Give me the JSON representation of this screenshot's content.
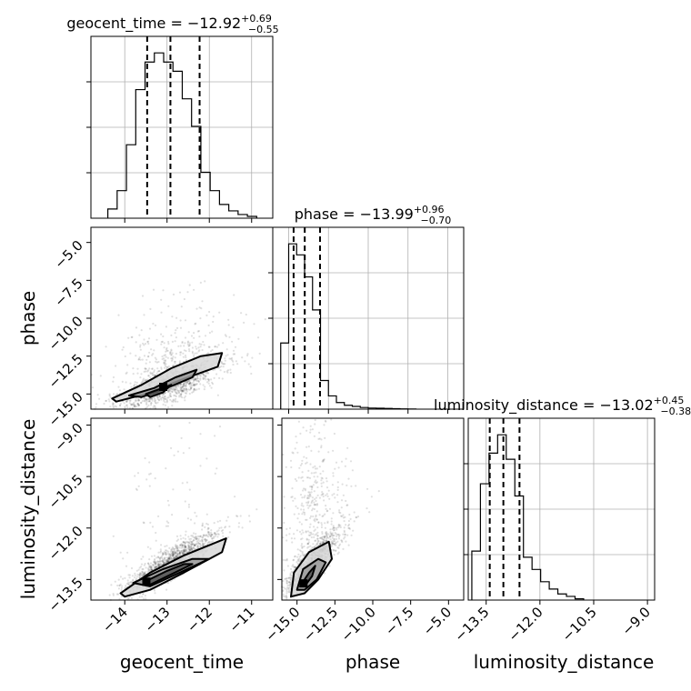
{
  "figure": {
    "type": "corner-plot",
    "background": "#ffffff",
    "hist_color": "#000000",
    "median_line_color": "#000000"
  },
  "chart_data": [
    {
      "type": "histogram",
      "parameter": "geocent_time",
      "title": "geocent_time = −12.92",
      "title_sup": "+0.69",
      "title_sub": "−0.55",
      "xlim": [
        -14.8,
        -10.5
      ],
      "quantiles": [
        -13.47,
        -12.92,
        -12.23
      ],
      "bin_edges": [
        -14.4,
        -14.18,
        -13.96,
        -13.74,
        -13.52,
        -13.3,
        -13.08,
        -12.86,
        -12.64,
        -12.42,
        -12.2,
        -11.98,
        -11.76,
        -11.54,
        -11.32,
        -11.1,
        -10.88
      ],
      "counts": [
        1,
        3,
        8,
        14,
        17,
        18,
        17,
        16,
        13,
        10,
        5,
        3,
        1.5,
        0.8,
        0.4,
        0.2
      ],
      "grid": true
    },
    {
      "type": "histogram",
      "parameter": "phase",
      "title": "phase = −13.99",
      "title_sup": "+0.96",
      "title_sub": "−0.70",
      "xlim": [
        -16.0,
        -4.0
      ],
      "quantiles": [
        -14.69,
        -13.99,
        -13.03
      ],
      "bin_edges": [
        -15.5,
        -15.0,
        -14.5,
        -14.0,
        -13.5,
        -13.0,
        -12.5,
        -12.0,
        -11.5,
        -11.0,
        -10.5,
        -10.0,
        -9.5,
        -9.0,
        -8.5,
        -8.0,
        -7.5,
        -7.0
      ],
      "counts": [
        6,
        15,
        14,
        12,
        9,
        2.6,
        1.2,
        0.6,
        0.35,
        0.25,
        0.15,
        0.1,
        0.08,
        0.06,
        0.04,
        0.02,
        0.01
      ],
      "grid": true
    },
    {
      "type": "histogram",
      "parameter": "luminosity_distance",
      "title": "luminosity_distance = −13.02",
      "title_sup": "+0.45",
      "title_sub": "−0.38",
      "xlim": [
        -14.0,
        -8.8
      ],
      "quantiles": [
        -13.4,
        -13.02,
        -12.57
      ],
      "bin_edges": [
        -13.9,
        -13.66,
        -13.42,
        -13.18,
        -12.94,
        -12.7,
        -12.46,
        -12.22,
        -11.98,
        -11.74,
        -11.5,
        -11.26,
        -11.02,
        -10.78
      ],
      "counts": [
        4,
        9.5,
        12,
        13.5,
        11.5,
        8.5,
        3.5,
        2.5,
        1.5,
        0.9,
        0.5,
        0.3,
        0.1
      ],
      "grid": true
    },
    {
      "type": "scatter",
      "x_param": "geocent_time",
      "y_param": "phase",
      "xlim": [
        -14.8,
        -10.5
      ],
      "ylim": [
        -16.0,
        -4.0
      ],
      "cloud": {
        "x_mean": -12.92,
        "x_sd": 0.55,
        "y_base": -14.4,
        "y_slope": 1.0,
        "y_sd": 0.55,
        "tail_fraction": 0.3
      },
      "contours": [
        {
          "level": "outer",
          "points": [
            [
              -14.3,
              -15.3
            ],
            [
              -13.6,
              -14.4
            ],
            [
              -12.9,
              -13.3
            ],
            [
              -12.2,
              -12.5
            ],
            [
              -11.7,
              -12.3
            ],
            [
              -11.8,
              -13.2
            ],
            [
              -12.7,
              -14.1
            ],
            [
              -13.5,
              -15.0
            ],
            [
              -14.2,
              -15.5
            ]
          ]
        },
        {
          "level": "middle",
          "points": [
            [
              -13.9,
              -15.1
            ],
            [
              -13.3,
              -14.6
            ],
            [
              -12.8,
              -13.9
            ],
            [
              -12.3,
              -13.4
            ],
            [
              -12.4,
              -13.9
            ],
            [
              -13.0,
              -14.6
            ],
            [
              -13.6,
              -15.2
            ]
          ]
        },
        {
          "level": "inner",
          "points": [
            [
              -13.5,
              -15.0
            ],
            [
              -13.1,
              -14.6
            ],
            [
              -12.9,
              -14.4
            ],
            [
              -13.1,
              -14.9
            ],
            [
              -13.4,
              -15.2
            ]
          ]
        }
      ],
      "peak": [
        -13.1,
        -14.5
      ],
      "grid": false
    },
    {
      "type": "scatter",
      "x_param": "geocent_time",
      "y_param": "luminosity_distance",
      "xlim": [
        -14.8,
        -10.5
      ],
      "ylim": [
        -14.1,
        -8.8
      ],
      "cloud": {
        "x_mean": -12.92,
        "x_sd": 0.55,
        "y_base": -13.02,
        "y_slope": 0.75,
        "y_sd": 0.22,
        "tail_fraction": 0.05
      },
      "contours": [
        {
          "level": "outer",
          "points": [
            [
              -14.1,
              -13.9
            ],
            [
              -13.4,
              -13.3
            ],
            [
              -12.6,
              -12.8
            ],
            [
              -11.6,
              -12.3
            ],
            [
              -11.7,
              -12.7
            ],
            [
              -12.6,
              -13.3
            ],
            [
              -13.4,
              -13.8
            ],
            [
              -14.0,
              -14.0
            ]
          ]
        },
        {
          "level": "middle",
          "points": [
            [
              -13.8,
              -13.6
            ],
            [
              -13.1,
              -13.2
            ],
            [
              -12.4,
              -12.9
            ],
            [
              -12.0,
              -12.9
            ],
            [
              -12.7,
              -13.3
            ],
            [
              -13.4,
              -13.7
            ]
          ]
        },
        {
          "level": "inner",
          "points": [
            [
              -13.5,
              -13.55
            ],
            [
              -13.0,
              -13.25
            ],
            [
              -12.6,
              -13.05
            ],
            [
              -12.4,
              -13.05
            ],
            [
              -12.9,
              -13.35
            ],
            [
              -13.4,
              -13.65
            ]
          ]
        }
      ],
      "peak": [
        -13.5,
        -13.55
      ],
      "grid": false
    },
    {
      "type": "scatter",
      "x_param": "phase",
      "y_param": "luminosity_distance",
      "xlim": [
        -16.0,
        -4.0
      ],
      "ylim": [
        -14.1,
        -8.8
      ],
      "cloud": {
        "x_mean": -13.99,
        "x_sd": 0.8,
        "y_base": -13.02,
        "y_slope": 0.45,
        "y_sd": 0.25,
        "tail_fraction": 0.3
      },
      "contours": [
        {
          "level": "outer",
          "points": [
            [
              -15.4,
              -14.0
            ],
            [
              -15.2,
              -13.3
            ],
            [
              -14.2,
              -12.7
            ],
            [
              -12.9,
              -12.4
            ],
            [
              -12.7,
              -12.9
            ],
            [
              -13.6,
              -13.5
            ],
            [
              -14.5,
              -13.9
            ]
          ]
        },
        {
          "level": "middle",
          "points": [
            [
              -15.0,
              -13.8
            ],
            [
              -14.6,
              -13.2
            ],
            [
              -13.6,
              -12.9
            ],
            [
              -13.1,
              -13.0
            ],
            [
              -13.7,
              -13.5
            ],
            [
              -14.5,
              -13.8
            ]
          ]
        },
        {
          "level": "inner",
          "points": [
            [
              -14.8,
              -13.7
            ],
            [
              -14.2,
              -13.3
            ],
            [
              -13.8,
              -13.1
            ],
            [
              -14.0,
              -13.4
            ],
            [
              -14.5,
              -13.7
            ]
          ]
        }
      ],
      "peak": [
        -14.6,
        -13.6
      ],
      "grid": false
    }
  ],
  "axes": {
    "geocent_time": {
      "label": "geocent_time",
      "ticks": [
        -14,
        -13,
        -12,
        -11
      ],
      "tick_labels": [
        "−14",
        "−13",
        "−12",
        "−11"
      ]
    },
    "phase": {
      "label": "phase",
      "x_ticks": [
        -15.0,
        -12.5,
        -10.0,
        -7.5,
        -5.0
      ],
      "x_tick_labels": [
        "−15.0",
        "−12.5",
        "−10.0",
        "−7.5",
        "−5.0"
      ],
      "y_ticks": [
        -15.0,
        -12.5,
        -10.0,
        -7.5,
        -5.0
      ],
      "y_tick_labels": [
        "−15.0",
        "−12.5",
        "−10.0",
        "−7.5",
        "−5.0"
      ]
    },
    "luminosity_distance": {
      "label": "luminosity_distance",
      "ticks": [
        -13.5,
        -12.0,
        -10.5,
        -9.0
      ],
      "tick_labels": [
        "−13.5",
        "−12.0",
        "−10.5",
        "−9.0"
      ]
    }
  }
}
